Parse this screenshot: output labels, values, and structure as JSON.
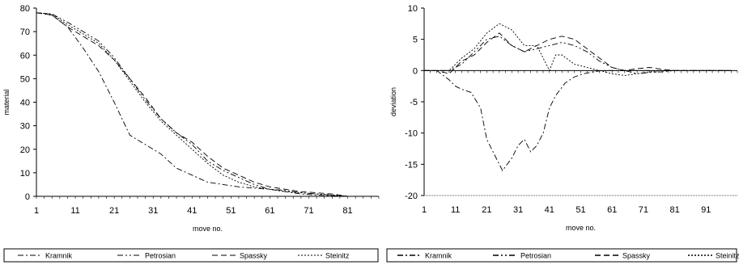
{
  "chart_data": [
    {
      "type": "line",
      "title": "",
      "xlabel": "move no.",
      "ylabel": "material",
      "xlim": [
        1,
        89
      ],
      "ylim": [
        0,
        80
      ],
      "x_ticks": [
        1,
        11,
        21,
        31,
        41,
        51,
        61,
        71,
        81
      ],
      "y_ticks": [
        0,
        10,
        20,
        30,
        40,
        50,
        60,
        70,
        80
      ],
      "grid": false,
      "legend_position": "bottom",
      "series": [
        {
          "name": "Kramnik",
          "dash": "dash-dot",
          "x": [
            1,
            5,
            9,
            13,
            17,
            21,
            25,
            29,
            33,
            37,
            41,
            45,
            49,
            53,
            57,
            61,
            65,
            69,
            73,
            77,
            81,
            85,
            89
          ],
          "y": [
            78,
            77,
            72,
            63,
            53,
            40,
            26,
            22,
            18,
            12,
            9,
            6,
            5,
            4,
            3.5,
            3,
            2,
            1,
            0.5,
            0.3,
            0,
            0,
            0
          ]
        },
        {
          "name": "Petrosian",
          "dash": "dash-dot-dot",
          "x": [
            1,
            5,
            9,
            13,
            17,
            21,
            25,
            29,
            33,
            37,
            41,
            45,
            49,
            53,
            57,
            61,
            65,
            69,
            73,
            77,
            81,
            85,
            89
          ],
          "y": [
            78,
            77.5,
            74,
            70,
            66,
            59,
            50,
            41,
            33,
            27,
            22,
            15,
            11,
            8,
            5,
            3,
            2.5,
            1.5,
            1,
            0.5,
            0,
            0,
            0
          ]
        },
        {
          "name": "Spassky",
          "dash": "dashed",
          "x": [
            1,
            5,
            9,
            13,
            17,
            21,
            25,
            29,
            33,
            37,
            41,
            45,
            49,
            53,
            57,
            61,
            65,
            69,
            73,
            77,
            81,
            85,
            89
          ],
          "y": [
            78,
            77,
            72,
            68,
            64,
            58,
            50,
            42,
            33,
            27,
            23,
            17,
            12,
            9,
            6,
            4,
            3,
            2,
            1.5,
            1,
            0,
            0,
            0
          ]
        },
        {
          "name": "Steinitz",
          "dash": "dotted",
          "x": [
            1,
            5,
            9,
            13,
            17,
            21,
            25,
            29,
            33,
            37,
            41,
            45,
            49,
            53,
            57,
            61,
            65,
            69,
            73,
            77,
            81,
            85,
            89
          ],
          "y": [
            78,
            77.5,
            73,
            69,
            65,
            58,
            49,
            40,
            32,
            26,
            20,
            14,
            9,
            6,
            4,
            3,
            2,
            1.5,
            1,
            0.5,
            0,
            0,
            0
          ]
        }
      ]
    },
    {
      "type": "line",
      "title": "",
      "xlabel": "move no.",
      "ylabel": "deviation",
      "xlim": [
        1,
        101
      ],
      "ylim": [
        -20,
        10
      ],
      "x_ticks": [
        1,
        11,
        21,
        31,
        41,
        51,
        61,
        71,
        81,
        91
      ],
      "y_ticks": [
        10,
        5,
        0,
        -5,
        -10,
        -15,
        -20
      ],
      "grid": false,
      "legend_position": "bottom",
      "series": [
        {
          "name": "Kramnik",
          "dash": "dash-dot",
          "x": [
            1,
            5,
            9,
            11,
            13,
            16,
            19,
            21,
            23,
            26,
            29,
            31,
            33,
            35,
            37,
            39,
            41,
            43,
            46,
            49,
            52,
            55,
            58,
            61,
            65,
            70,
            75,
            80,
            85,
            90,
            95,
            99
          ],
          "y": [
            0,
            0,
            -1.5,
            -2.5,
            -3,
            -3.5,
            -6,
            -11,
            -13,
            -16,
            -14,
            -12,
            -11,
            -13,
            -12,
            -10,
            -6,
            -4,
            -2,
            -1,
            -0.5,
            -0.2,
            0,
            0,
            0,
            0,
            0,
            0,
            0,
            0,
            0,
            0
          ]
        },
        {
          "name": "Petrosian",
          "dash": "dash-dot-dot",
          "x": [
            1,
            5,
            9,
            13,
            17,
            21,
            25,
            29,
            33,
            37,
            41,
            45,
            49,
            53,
            57,
            61,
            65,
            69,
            73,
            77,
            81,
            85,
            89,
            93,
            97,
            99
          ],
          "y": [
            0,
            0,
            0,
            1,
            3,
            5,
            5.5,
            4,
            3,
            3.5,
            4,
            4.5,
            4,
            3,
            1.5,
            0.5,
            0,
            -0.5,
            -0.3,
            -0.2,
            0,
            0,
            0,
            0,
            0,
            0
          ]
        },
        {
          "name": "Spassky",
          "dash": "dashed",
          "x": [
            1,
            5,
            9,
            13,
            17,
            21,
            25,
            29,
            33,
            37,
            41,
            45,
            49,
            53,
            57,
            61,
            65,
            69,
            73,
            77,
            81,
            85,
            89,
            93,
            97,
            99
          ],
          "y": [
            0,
            0,
            -0.5,
            1.5,
            2.5,
            4.5,
            6,
            4,
            3,
            4,
            5,
            5.5,
            5,
            3.5,
            2,
            0.5,
            0,
            0.3,
            0.5,
            0.2,
            0,
            0,
            0,
            0,
            0,
            0
          ]
        },
        {
          "name": "Steinitz",
          "dash": "dotted",
          "x": [
            1,
            5,
            9,
            13,
            17,
            21,
            25,
            29,
            33,
            37,
            41,
            43,
            45,
            49,
            53,
            57,
            61,
            65,
            69,
            73,
            77,
            81,
            85,
            89,
            93,
            97,
            99
          ],
          "y": [
            0,
            0,
            0,
            2,
            3.5,
            6,
            7.5,
            6.5,
            4,
            4,
            0,
            2.5,
            2.5,
            1,
            0.5,
            0,
            -0.5,
            -0.8,
            -0.5,
            -0.2,
            0,
            0,
            0,
            0,
            0,
            0,
            0
          ]
        }
      ]
    }
  ]
}
